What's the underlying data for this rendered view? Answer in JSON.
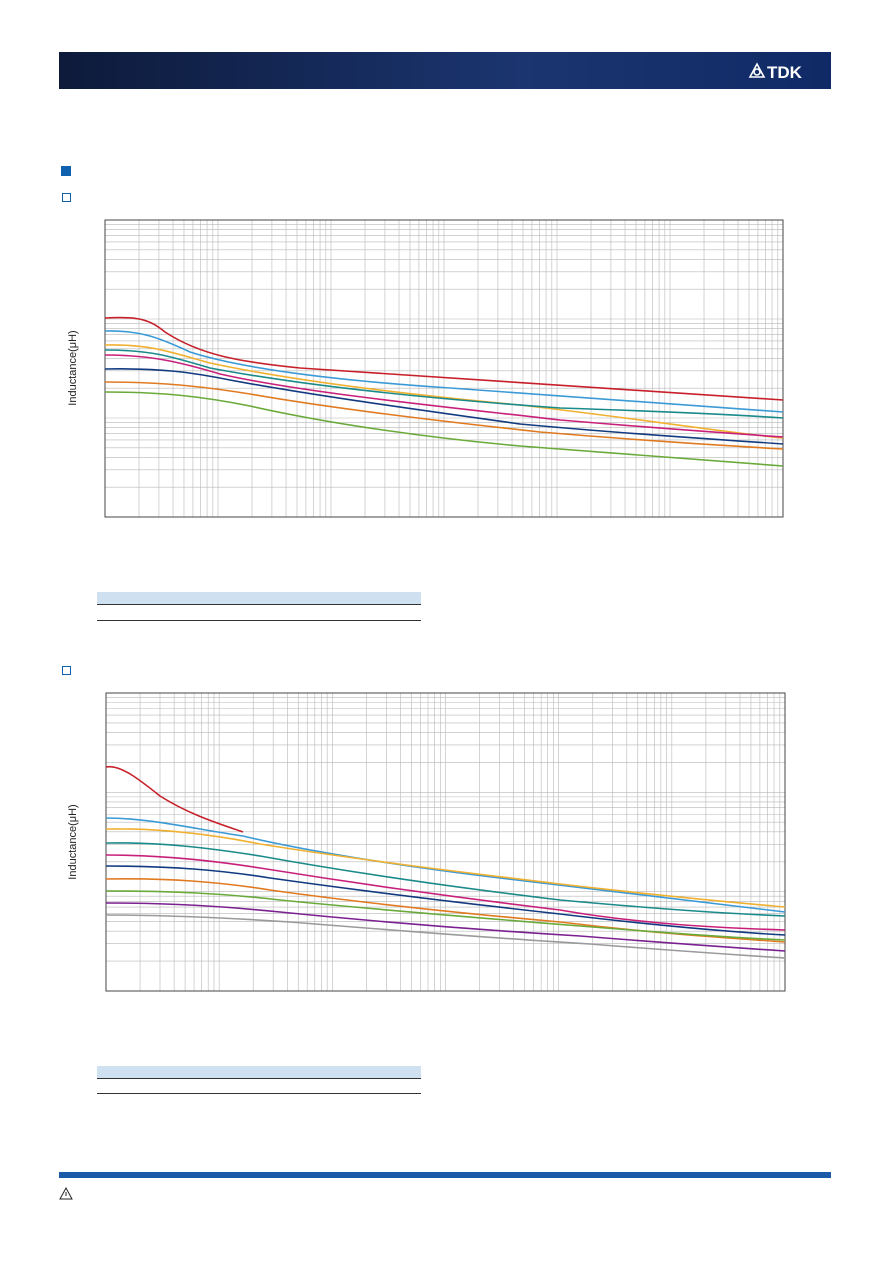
{
  "header": {
    "logo": "TDK"
  },
  "charts": [
    {
      "ylabel": "Inductance(μH)"
    },
    {
      "ylabel": "Inductance(μH)"
    }
  ]
}
